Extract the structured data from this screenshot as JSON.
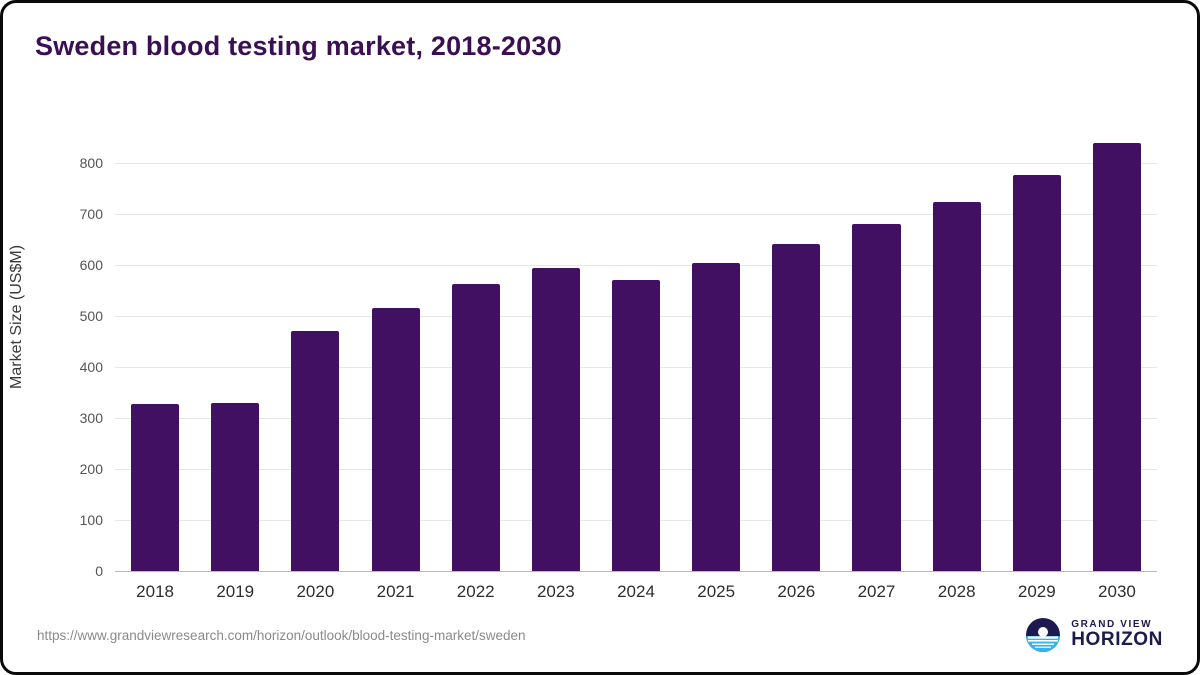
{
  "page": {
    "title": "Sweden blood testing market, 2018-2030",
    "source_url": "https://www.grandviewresearch.com/horizon/outlook/blood-testing-market/sweden",
    "logo": {
      "name": "grand-view-horizon-logo",
      "top_text": "GRAND VIEW",
      "bottom_text": "HORIZON",
      "icon_color_dark": "#1c1a4e",
      "icon_color_cyan": "#35b5e8"
    }
  },
  "chart_data": {
    "type": "bar",
    "title": "Sweden blood testing market, 2018-2030",
    "xlabel": "",
    "ylabel": "Market Size (US$M)",
    "categories": [
      "2018",
      "2019",
      "2020",
      "2021",
      "2022",
      "2023",
      "2024",
      "2025",
      "2026",
      "2027",
      "2028",
      "2029",
      "2030"
    ],
    "values": [
      328,
      330,
      470,
      515,
      562,
      593,
      571,
      604,
      640,
      680,
      724,
      776,
      838
    ],
    "ylim": [
      0,
      880
    ],
    "yticks": [
      0,
      100,
      200,
      300,
      400,
      500,
      600,
      700,
      800
    ],
    "grid": true,
    "legend": false,
    "bar_color": "#421062"
  }
}
